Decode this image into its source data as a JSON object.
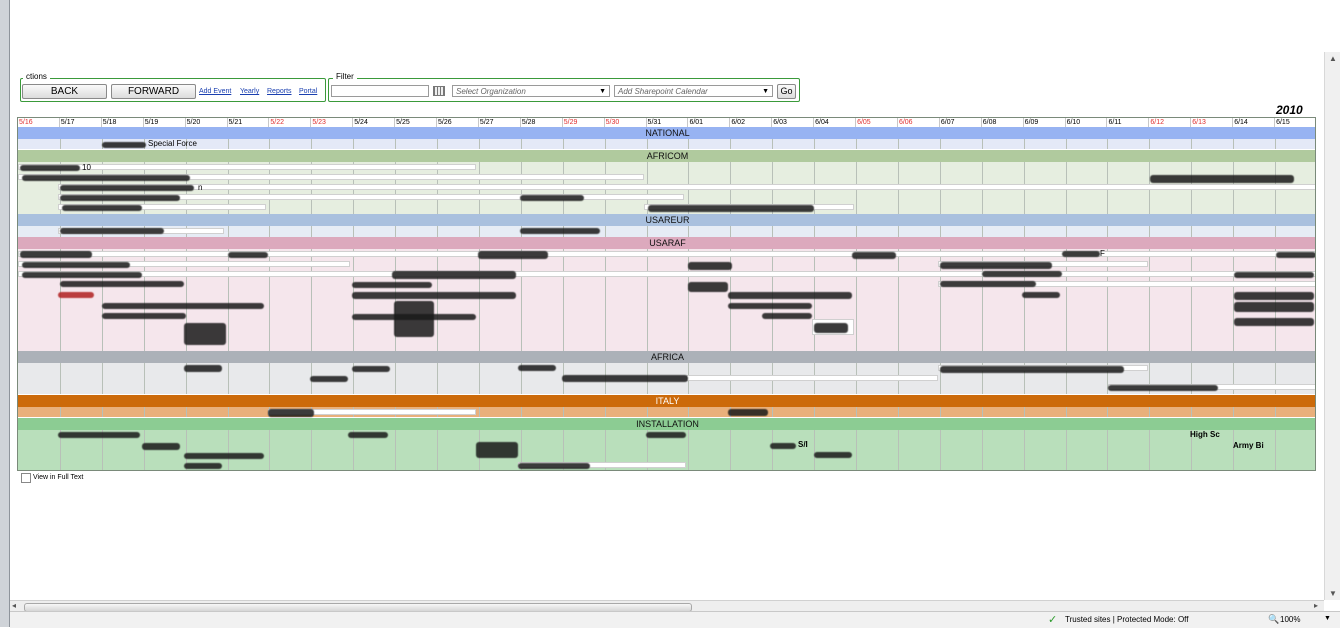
{
  "toolbar": {
    "actions_legend": "ctions",
    "back_label": "BACK",
    "forward_label": "FORWARD",
    "links": [
      "Add Event",
      "Yearly",
      "Reports",
      "Portal"
    ],
    "filter_legend": "Filter",
    "org_placeholder": "Select Organization",
    "calendar_placeholder": "Add Sharepoint Calendar",
    "go_label": "Go"
  },
  "calendar": {
    "year": "2010",
    "days": [
      {
        "label": "5/16",
        "weekend": true
      },
      {
        "label": "5/17",
        "weekend": false
      },
      {
        "label": "5/18",
        "weekend": false
      },
      {
        "label": "5/19",
        "weekend": false
      },
      {
        "label": "5/20",
        "weekend": false
      },
      {
        "label": "5/21",
        "weekend": false
      },
      {
        "label": "5/22",
        "weekend": true
      },
      {
        "label": "5/23",
        "weekend": true
      },
      {
        "label": "5/24",
        "weekend": false
      },
      {
        "label": "5/25",
        "weekend": false
      },
      {
        "label": "5/26",
        "weekend": false
      },
      {
        "label": "5/27",
        "weekend": false
      },
      {
        "label": "5/28",
        "weekend": false
      },
      {
        "label": "5/29",
        "weekend": true
      },
      {
        "label": "5/30",
        "weekend": true
      },
      {
        "label": "5/31",
        "weekend": false
      },
      {
        "label": "6/01",
        "weekend": false
      },
      {
        "label": "6/02",
        "weekend": false
      },
      {
        "label": "6/03",
        "weekend": false
      },
      {
        "label": "6/04",
        "weekend": false
      },
      {
        "label": "6/05",
        "weekend": true
      },
      {
        "label": "6/06",
        "weekend": true
      },
      {
        "label": "6/07",
        "weekend": false
      },
      {
        "label": "6/08",
        "weekend": false
      },
      {
        "label": "6/09",
        "weekend": false
      },
      {
        "label": "6/10",
        "weekend": false
      },
      {
        "label": "6/11",
        "weekend": false
      },
      {
        "label": "6/12",
        "weekend": true
      },
      {
        "label": "6/13",
        "weekend": true
      },
      {
        "label": "6/14",
        "weekend": false
      },
      {
        "label": "6/15",
        "weekend": false
      }
    ],
    "sections": [
      {
        "name": "NATIONAL",
        "header_color": "#97b3f2",
        "body_color": "#e4e9f7"
      },
      {
        "name": "AFRICOM",
        "header_color": "#b0ca9e",
        "body_color": "#e6eee0"
      },
      {
        "name": "USAREUR",
        "header_color": "#a9c0de",
        "body_color": "#e6ecf5"
      },
      {
        "name": "USARAF",
        "header_color": "#dca9bd",
        "body_color": "#f5e6ec"
      },
      {
        "name": "AFRICA",
        "header_color": "#acb1b8",
        "body_color": "#e8e9eb"
      },
      {
        "name": "ITALY",
        "header_color": "#cc6a0a",
        "body_color": "#e9b07b"
      },
      {
        "name": "INSTALLATION",
        "header_color": "#8ccc93",
        "body_color": "#b9dfbb"
      }
    ],
    "visible_event_text": {
      "national_event": "Special Force",
      "africom_event": "10",
      "africom_event_b": "n",
      "usaraf_event_a": "F",
      "install_event_a": "High Sc",
      "install_event_b": "Army Bi",
      "install_event_c": "S/I"
    },
    "view_full_text_label": "View in Full Text"
  },
  "status": {
    "security_text": "Trusted sites | Protected Mode: Off",
    "zoom": "100%"
  }
}
